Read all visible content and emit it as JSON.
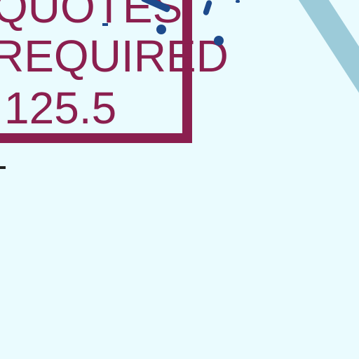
{
  "stamp": {
    "line1": "QUOTES",
    "line2": "REQUIRED",
    "line3": "125.5"
  },
  "colors": {
    "background": "#eafbfe",
    "stamp": "#8b1f4f",
    "ink": "#1d4a8c",
    "stripe": "#9ccbd9"
  }
}
